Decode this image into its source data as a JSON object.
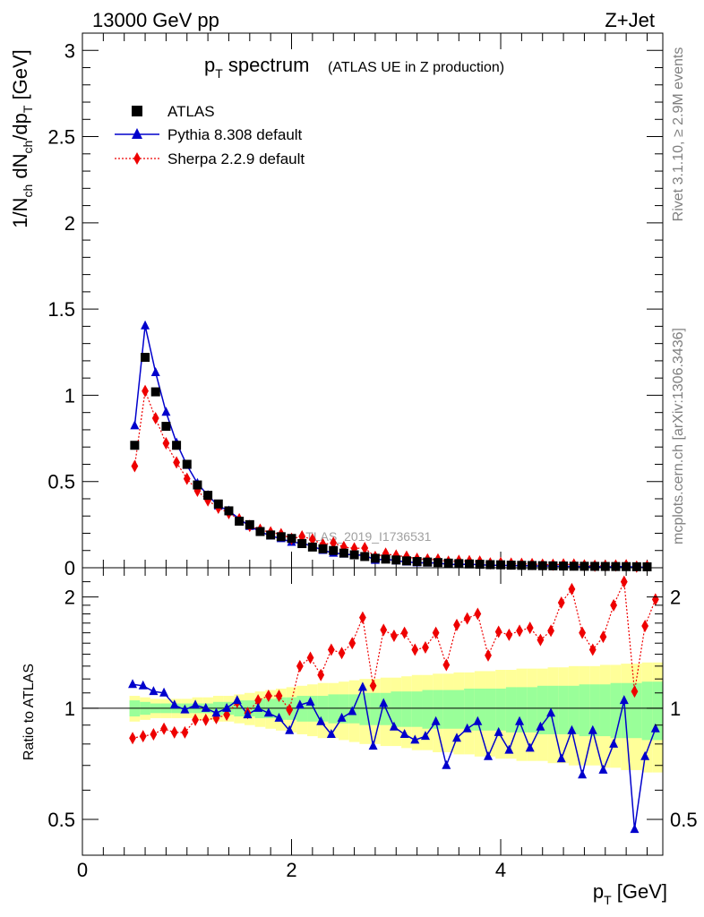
{
  "header": {
    "left": "13000 GeV pp",
    "right": "Z+Jet",
    "side_top": "Rivet 3.1.10, ≥ 2.9M events",
    "side_bottom": "mcplots.cern.ch [arXiv:1306.3436]"
  },
  "chart_data": {
    "type": "scatter",
    "title_main": "p_T spectrum",
    "title_sub": "(ATLAS UE in Z production)",
    "analysis_label": "ATLAS_2019_I1736531",
    "ylabel_top": "1/N_ch dN_ch/dp_T [GeV]",
    "ylabel_bottom": "Ratio to ATLAS",
    "xlabel": "p_T [GeV]",
    "xlim": [
      0,
      5.55
    ],
    "ylim_top": [
      0,
      3.1
    ],
    "ylim_bottom_log": [
      0.4,
      2.4
    ],
    "x_ticks": [
      "0",
      "2",
      "4"
    ],
    "y_ticks_top": [
      "0",
      "0.5",
      "1",
      "1.5",
      "2",
      "2.5",
      "3"
    ],
    "y_ticks_bottom": [
      "0.5",
      "1",
      "2"
    ],
    "x": [
      0.5,
      0.6,
      0.7,
      0.8,
      0.9,
      1.0,
      1.1,
      1.2,
      1.3,
      1.4,
      1.5,
      1.6,
      1.7,
      1.8,
      1.9,
      2.0,
      2.1,
      2.2,
      2.3,
      2.4,
      2.5,
      2.6,
      2.7,
      2.8,
      2.9,
      3.0,
      3.1,
      3.2,
      3.3,
      3.4,
      3.5,
      3.6,
      3.7,
      3.8,
      3.9,
      4.0,
      4.1,
      4.2,
      4.3,
      4.4,
      4.5,
      4.6,
      4.7,
      4.8,
      4.9,
      5.0,
      5.1,
      5.2,
      5.3,
      5.4
    ],
    "series": [
      {
        "name": "ATLAS",
        "color": "#000000",
        "marker": "square",
        "values": [
          0.71,
          1.22,
          1.02,
          0.82,
          0.71,
          0.6,
          0.48,
          0.42,
          0.37,
          0.33,
          0.27,
          0.25,
          0.21,
          0.19,
          0.18,
          0.17,
          0.14,
          0.12,
          0.11,
          0.1,
          0.085,
          0.075,
          0.065,
          0.055,
          0.05,
          0.045,
          0.04,
          0.036,
          0.033,
          0.03,
          0.027,
          0.024,
          0.022,
          0.02,
          0.018,
          0.017,
          0.015,
          0.014,
          0.013,
          0.012,
          0.011,
          0.01,
          0.009,
          0.0085,
          0.008,
          0.0075,
          0.007,
          0.0065,
          0.006,
          0.0055
        ]
      },
      {
        "name": "Pythia 8.308 default",
        "color": "#0000cc",
        "marker": "triangle",
        "ratio": [
          1.16,
          1.15,
          1.11,
          1.1,
          1.02,
          0.99,
          1.02,
          1.0,
          0.97,
          1.0,
          1.05,
          0.96,
          1.0,
          0.97,
          0.94,
          0.87,
          1.02,
          1.04,
          0.92,
          0.85,
          0.94,
          0.98,
          1.14,
          0.79,
          1.03,
          0.89,
          0.85,
          0.82,
          0.84,
          0.92,
          0.7,
          0.83,
          0.88,
          0.92,
          0.74,
          0.86,
          0.77,
          0.92,
          0.78,
          0.89,
          0.97,
          0.73,
          0.87,
          0.66,
          0.87,
          0.68,
          0.8,
          1.05,
          0.47,
          0.74,
          0.88
        ]
      },
      {
        "name": "Sherpa 2.2.9 default",
        "color": "#ee0000",
        "marker": "diamond",
        "ratio": [
          0.83,
          0.84,
          0.85,
          0.88,
          0.86,
          0.86,
          0.93,
          0.93,
          0.94,
          0.96,
          1.04,
          0.97,
          1.05,
          1.08,
          1.08,
          0.99,
          1.3,
          1.37,
          1.23,
          1.44,
          1.41,
          1.5,
          1.76,
          1.15,
          1.63,
          1.57,
          1.6,
          1.44,
          1.46,
          1.6,
          1.31,
          1.68,
          1.75,
          1.8,
          1.39,
          1.61,
          1.58,
          1.62,
          1.65,
          1.53,
          1.62,
          1.93,
          2.1,
          1.6,
          1.44,
          1.56,
          1.9,
          2.2,
          1.11,
          1.67,
          1.97
        ]
      }
    ],
    "ratio_x": [
      0.48,
      0.58,
      0.68,
      0.78,
      0.88,
      0.98,
      1.08,
      1.18,
      1.28,
      1.38,
      1.48,
      1.58,
      1.68,
      1.78,
      1.88,
      1.98,
      2.08,
      2.18,
      2.28,
      2.38,
      2.48,
      2.58,
      2.68,
      2.78,
      2.88,
      2.98,
      3.08,
      3.18,
      3.28,
      3.38,
      3.48,
      3.58,
      3.68,
      3.78,
      3.88,
      3.98,
      4.08,
      4.18,
      4.28,
      4.38,
      4.48,
      4.58,
      4.68,
      4.78,
      4.88,
      4.98,
      5.08,
      5.18,
      5.28,
      5.38,
      5.48
    ],
    "bands": {
      "inner_color": "#99ff99",
      "outer_color": "#ffff99",
      "edges": [
        0.45,
        0.55,
        0.65,
        0.75,
        0.85,
        0.95,
        1.05,
        1.15,
        1.25,
        1.35,
        1.45,
        1.55,
        1.65,
        1.75,
        1.85,
        1.95,
        2.05,
        2.15,
        2.25,
        2.35,
        2.45,
        2.55,
        2.65,
        2.75,
        2.85,
        2.95,
        3.05,
        3.15,
        3.25,
        3.35,
        3.45,
        3.55,
        3.65,
        3.75,
        3.85,
        3.95,
        4.05,
        4.15,
        4.25,
        4.35,
        4.45,
        4.55,
        4.65,
        4.75,
        4.85,
        4.95,
        5.05,
        5.15,
        5.25,
        5.35,
        5.45,
        5.55
      ],
      "inner": [
        0.05,
        0.04,
        0.03,
        0.03,
        0.03,
        0.03,
        0.03,
        0.03,
        0.04,
        0.04,
        0.05,
        0.05,
        0.06,
        0.06,
        0.07,
        0.07,
        0.08,
        0.08,
        0.08,
        0.09,
        0.09,
        0.09,
        0.1,
        0.1,
        0.1,
        0.11,
        0.11,
        0.11,
        0.12,
        0.12,
        0.12,
        0.12,
        0.13,
        0.13,
        0.13,
        0.13,
        0.14,
        0.14,
        0.14,
        0.15,
        0.15,
        0.15,
        0.15,
        0.16,
        0.16,
        0.16,
        0.17,
        0.17,
        0.17,
        0.18,
        0.18
      ],
      "outer": [
        0.08,
        0.07,
        0.06,
        0.06,
        0.06,
        0.06,
        0.07,
        0.07,
        0.08,
        0.08,
        0.09,
        0.1,
        0.11,
        0.12,
        0.13,
        0.14,
        0.15,
        0.16,
        0.17,
        0.17,
        0.18,
        0.19,
        0.2,
        0.2,
        0.21,
        0.21,
        0.22,
        0.23,
        0.23,
        0.24,
        0.24,
        0.25,
        0.25,
        0.26,
        0.26,
        0.27,
        0.27,
        0.28,
        0.28,
        0.28,
        0.29,
        0.29,
        0.3,
        0.3,
        0.3,
        0.31,
        0.31,
        0.32,
        0.32,
        0.33,
        0.33
      ]
    }
  }
}
